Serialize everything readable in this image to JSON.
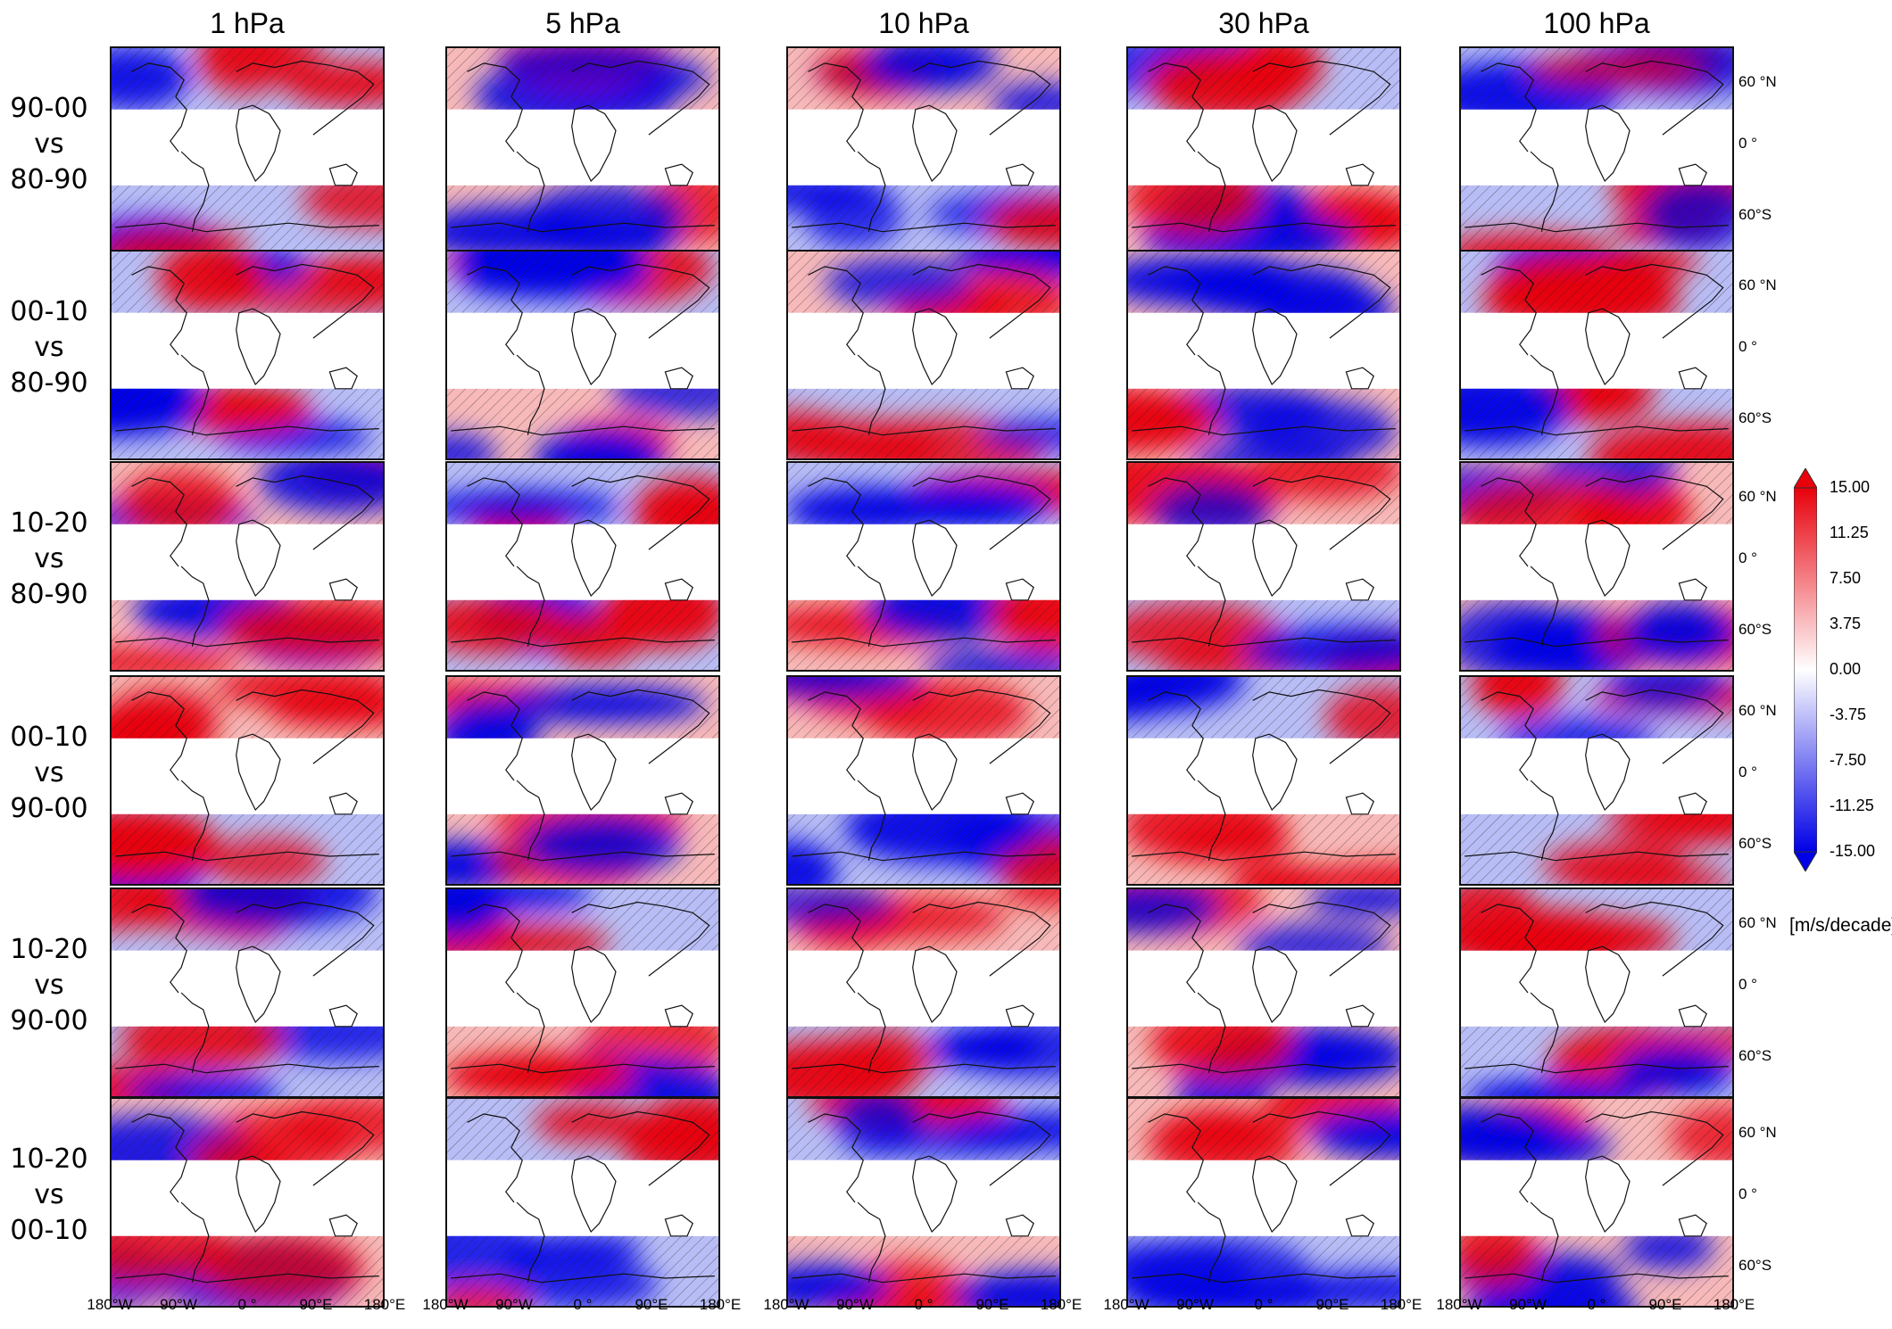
{
  "columns": [
    "1 hPa",
    "5 hPa",
    "10 hPa",
    "30 hPa",
    "100 hPa"
  ],
  "rows": [
    {
      "lines": [
        "90-00",
        "vs",
        "80-90"
      ]
    },
    {
      "lines": [
        "00-10",
        "vs",
        "80-90"
      ]
    },
    {
      "lines": [
        "10-20",
        "vs",
        "80-90"
      ]
    },
    {
      "lines": [
        "00-10",
        "vs",
        "90-00"
      ]
    },
    {
      "lines": [
        "10-20",
        "vs",
        "90-00"
      ]
    },
    {
      "lines": [
        "10-20",
        "vs",
        "00-10"
      ]
    }
  ],
  "lat_labels": [
    "60 °N",
    "0 °",
    "60°S"
  ],
  "lon_labels": [
    "180°W",
    "90°W",
    "0 °",
    "90°E",
    "180°E"
  ],
  "colorbar": {
    "ticks": [
      "15.00",
      "11.25",
      "7.50",
      "3.75",
      "0.00",
      "-3.75",
      "-7.50",
      "-11.25",
      "-15.00"
    ],
    "unit": "[m/s/decade]",
    "colors": {
      "positive": "#e8000b",
      "negative": "#0000e6",
      "zero": "#ffffff"
    }
  },
  "hatching": "stippled-diagonal"
}
